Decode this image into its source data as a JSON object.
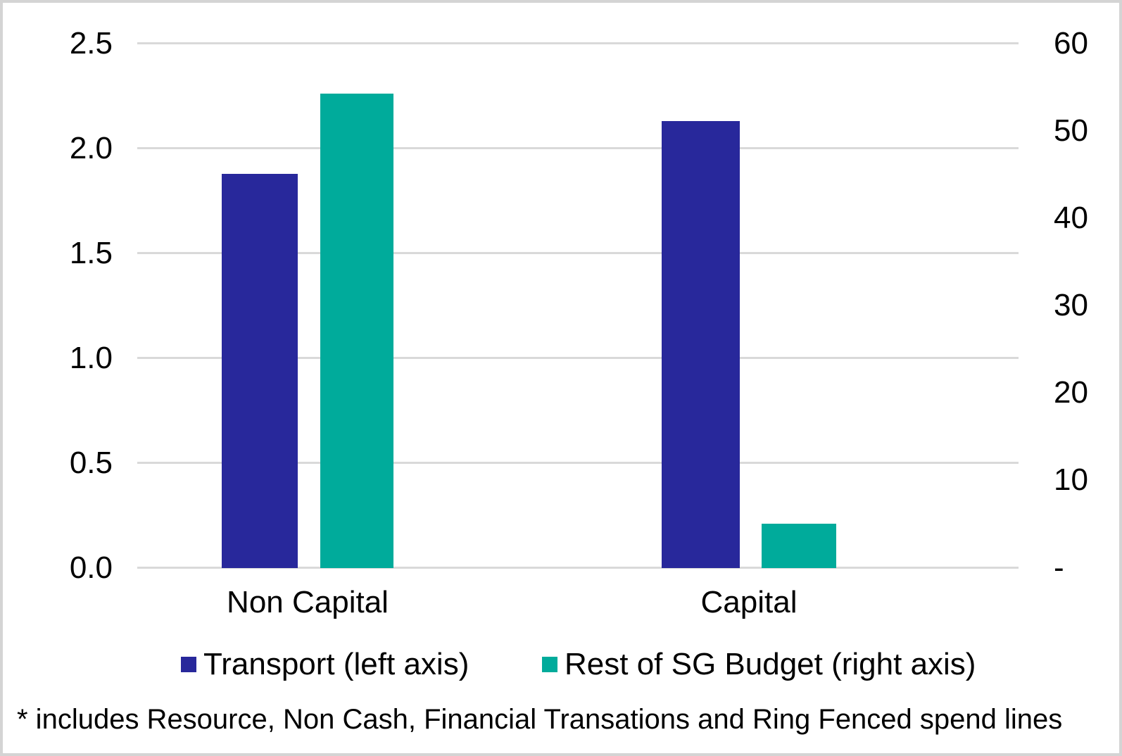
{
  "chart_data": {
    "type": "bar",
    "title": "",
    "categories": [
      "Non Capital",
      "Capital"
    ],
    "series": [
      {
        "name": "Transport (left axis)",
        "axis": "left",
        "color": "#28289b",
        "values": [
          1.88,
          2.13
        ]
      },
      {
        "name": "Rest of SG Budget (right axis)",
        "axis": "right",
        "color": "#00ab9b",
        "values": [
          54.3,
          5.1
        ]
      }
    ],
    "left_axis": {
      "min": 0,
      "max": 2.5,
      "step": 0.5,
      "tick_labels": [
        "2.5",
        "2.0",
        "1.5",
        "1.0",
        "0.5",
        "0.0"
      ]
    },
    "right_axis": {
      "min": 0,
      "max": 60,
      "step": 10,
      "tick_labels": [
        "60",
        "50",
        "40",
        "30",
        "20",
        "10",
        "-"
      ]
    },
    "grid": true,
    "gridline_color": "#d9d9d9",
    "legend_position": "bottom",
    "footnote": "* includes Resource, Non Cash, Financial Transations and Ring Fenced spend lines"
  }
}
